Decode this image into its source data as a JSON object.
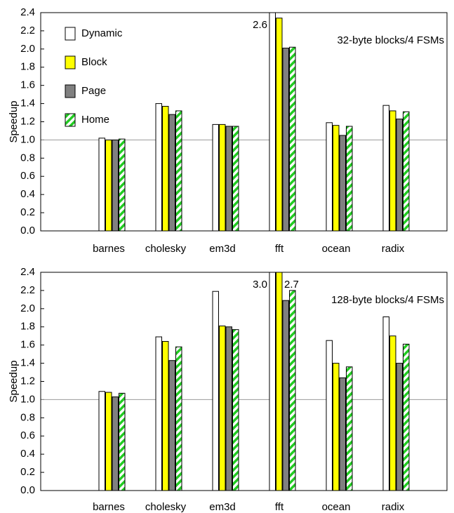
{
  "chart_data": [
    {
      "type": "bar",
      "annotation": "32-byte blocks/4 FSMs",
      "y_label": "Speedup",
      "categories": [
        "barnes",
        "cholesky",
        "em3d",
        "fft",
        "ocean",
        "radix"
      ],
      "series": [
        {
          "name": "Dynamic",
          "color": "#ffffff",
          "values": [
            1.02,
            1.4,
            1.17,
            2.6,
            1.19,
            1.38
          ],
          "value_labels": [
            null,
            null,
            null,
            "2.6",
            null,
            null
          ]
        },
        {
          "name": "Block",
          "color": "#ffff00",
          "values": [
            1.0,
            1.37,
            1.17,
            2.34,
            1.16,
            1.32
          ]
        },
        {
          "name": "Page",
          "color": "#808080",
          "values": [
            1.0,
            1.28,
            1.15,
            2.01,
            1.05,
            1.23
          ]
        },
        {
          "name": "Home",
          "color": "#22cc22",
          "pattern": "hatch",
          "values": [
            1.01,
            1.32,
            1.15,
            2.02,
            1.15,
            1.31
          ]
        }
      ],
      "ylim": [
        0,
        2.4
      ],
      "yticks": [
        {
          "value": 0,
          "label": "0.0"
        },
        0.2,
        0.4,
        0.6,
        0.8,
        {
          "value": 1,
          "label": "1.0"
        },
        1.2,
        1.4,
        1.6,
        1.8,
        {
          "value": 2,
          "label": "2.0"
        },
        2.2,
        2.4
      ],
      "reference_line": 1,
      "legend": "upper left"
    },
    {
      "type": "bar",
      "annotation": "128-byte blocks/4 FSMs",
      "y_label": "Speedup",
      "categories": [
        "barnes",
        "cholesky",
        "em3d",
        "fft",
        "ocean",
        "radix"
      ],
      "series": [
        {
          "color": "#ffffff",
          "values": [
            1.09,
            1.69,
            2.19,
            3.0,
            1.65,
            1.91
          ],
          "value_labels": [
            null,
            null,
            null,
            "3.0",
            null,
            null
          ]
        },
        {
          "color": "#ffff00",
          "values": [
            1.08,
            1.64,
            1.81,
            2.7,
            1.4,
            1.7
          ],
          "value_labels": [
            null,
            null,
            null,
            "2.7",
            null,
            null
          ]
        },
        {
          "color": "#808080",
          "values": [
            1.03,
            1.43,
            1.8,
            2.09,
            1.24,
            1.4
          ]
        },
        {
          "color": "#22cc22",
          "pattern": "hatch",
          "values": [
            1.07,
            1.58,
            1.77,
            2.2,
            1.36,
            1.61
          ]
        }
      ],
      "ylim": [
        0,
        2.4
      ],
      "yticks": [
        {
          "value": 0,
          "label": "0.0"
        },
        0.2,
        0.4,
        0.6,
        0.8,
        {
          "value": 1,
          "label": "1.0"
        },
        1.2,
        1.4,
        1.6,
        1.8,
        {
          "value": 2,
          "label": "2.0"
        },
        2.2,
        2.4
      ],
      "reference_line": 1
    }
  ]
}
